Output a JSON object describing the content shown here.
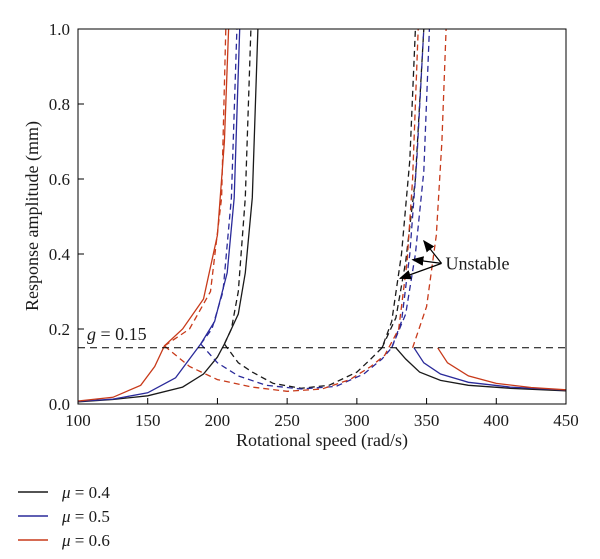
{
  "chart_data": {
    "type": "line",
    "xlabel": "Rotational speed (rad/s)",
    "ylabel": "Response amplitude (mm)",
    "xlim": [
      100,
      450
    ],
    "ylim": [
      0,
      1.0
    ],
    "xticks": [
      "100",
      "150",
      "200",
      "250",
      "300",
      "350",
      "400",
      "450"
    ],
    "yticks": [
      "0.0",
      "0.2",
      "0.4",
      "0.6",
      "0.8",
      "1.0"
    ],
    "grid": false,
    "legend_position": "below-left",
    "threshold": {
      "y": 0.15,
      "label_var": "g",
      "label_rest": " = 0.15",
      "style": "dashed",
      "color": "#000000"
    },
    "annotation": {
      "text": "Unstable",
      "x": 355,
      "y": 0.375
    },
    "annotation_targets": [
      {
        "x": 348,
        "y": 0.435
      },
      {
        "x": 340,
        "y": 0.385
      },
      {
        "x": 331,
        "y": 0.335
      }
    ],
    "series": [
      {
        "name": " = 0.4",
        "var": "μ",
        "color": "#1a1a1a",
        "stable_left": [
          [
            100,
            0.006
          ],
          [
            125,
            0.012
          ],
          [
            150,
            0.022
          ],
          [
            175,
            0.045
          ],
          [
            190,
            0.08
          ],
          [
            200,
            0.125
          ],
          [
            205,
            0.16
          ],
          [
            215,
            0.24
          ],
          [
            220,
            0.35
          ],
          [
            225,
            0.55
          ],
          [
            229,
            1.0
          ]
        ],
        "unstable_left": [
          [
            205,
            0.16
          ],
          [
            210,
            0.2
          ],
          [
            215,
            0.3
          ],
          [
            220,
            0.55
          ],
          [
            224,
            1.0
          ]
        ],
        "unstable_dip": [
          [
            205,
            0.16
          ],
          [
            215,
            0.11
          ],
          [
            225,
            0.085
          ],
          [
            240,
            0.055
          ],
          [
            260,
            0.042
          ],
          [
            280,
            0.05
          ],
          [
            300,
            0.085
          ],
          [
            310,
            0.12
          ],
          [
            318,
            0.15
          ],
          [
            325,
            0.22
          ],
          [
            332,
            0.4
          ],
          [
            338,
            0.65
          ],
          [
            342,
            1.0
          ]
        ],
        "unstable_right": [
          [
            318,
            0.15
          ],
          [
            328,
            0.23
          ],
          [
            335,
            0.38
          ],
          [
            342,
            0.6
          ],
          [
            348,
            1.0
          ]
        ],
        "stable_right": [
          [
            328,
            0.15
          ],
          [
            335,
            0.12
          ],
          [
            345,
            0.085
          ],
          [
            360,
            0.063
          ],
          [
            380,
            0.05
          ],
          [
            410,
            0.042
          ],
          [
            450,
            0.035
          ]
        ]
      },
      {
        "name": " = 0.5",
        "var": "μ",
        "color": "#2a2a9a",
        "stable_left": [
          [
            100,
            0.007
          ],
          [
            125,
            0.013
          ],
          [
            150,
            0.03
          ],
          [
            170,
            0.07
          ],
          [
            180,
            0.12
          ],
          [
            188,
            0.16
          ],
          [
            198,
            0.22
          ],
          [
            207,
            0.35
          ],
          [
            212,
            0.55
          ],
          [
            216,
            1.0
          ]
        ],
        "unstable_left": [
          [
            188,
            0.16
          ],
          [
            196,
            0.2
          ],
          [
            204,
            0.3
          ],
          [
            210,
            0.55
          ],
          [
            214,
            1.0
          ]
        ],
        "unstable_dip": [
          [
            188,
            0.16
          ],
          [
            200,
            0.11
          ],
          [
            215,
            0.075
          ],
          [
            235,
            0.05
          ],
          [
            260,
            0.04
          ],
          [
            285,
            0.047
          ],
          [
            305,
            0.08
          ],
          [
            318,
            0.12
          ],
          [
            325,
            0.15
          ],
          [
            332,
            0.22
          ],
          [
            338,
            0.4
          ],
          [
            343,
            0.65
          ],
          [
            348,
            1.0
          ]
        ],
        "unstable_right": [
          [
            325,
            0.15
          ],
          [
            335,
            0.24
          ],
          [
            342,
            0.4
          ],
          [
            348,
            0.62
          ],
          [
            352,
            1.0
          ]
        ],
        "stable_right": [
          [
            341,
            0.15
          ],
          [
            348,
            0.11
          ],
          [
            360,
            0.08
          ],
          [
            380,
            0.058
          ],
          [
            410,
            0.045
          ],
          [
            450,
            0.037
          ]
        ]
      },
      {
        "name": " = 0.6",
        "var": "μ",
        "color": "#c83a1a",
        "stable_left": [
          [
            100,
            0.008
          ],
          [
            125,
            0.018
          ],
          [
            145,
            0.05
          ],
          [
            155,
            0.1
          ],
          [
            162,
            0.155
          ],
          [
            175,
            0.2
          ],
          [
            190,
            0.28
          ],
          [
            200,
            0.45
          ],
          [
            205,
            0.7
          ],
          [
            208,
            1.0
          ]
        ],
        "unstable_left": [
          [
            162,
            0.155
          ],
          [
            180,
            0.2
          ],
          [
            195,
            0.3
          ],
          [
            203,
            0.55
          ],
          [
            206,
            1.0
          ]
        ],
        "unstable_dip": [
          [
            162,
            0.155
          ],
          [
            180,
            0.1
          ],
          [
            200,
            0.065
          ],
          [
            225,
            0.045
          ],
          [
            250,
            0.034
          ],
          [
            275,
            0.04
          ],
          [
            295,
            0.065
          ],
          [
            310,
            0.1
          ],
          [
            320,
            0.13
          ],
          [
            330,
            0.2
          ],
          [
            336,
            0.38
          ],
          [
            340,
            0.6
          ],
          [
            344,
            1.0
          ]
        ],
        "unstable_right": [
          [
            340,
            0.15
          ],
          [
            350,
            0.26
          ],
          [
            357,
            0.45
          ],
          [
            361,
            0.7
          ],
          [
            364,
            1.0
          ]
        ],
        "stable_right": [
          [
            358,
            0.15
          ],
          [
            365,
            0.11
          ],
          [
            380,
            0.075
          ],
          [
            400,
            0.055
          ],
          [
            425,
            0.044
          ],
          [
            450,
            0.038
          ]
        ]
      }
    ]
  }
}
